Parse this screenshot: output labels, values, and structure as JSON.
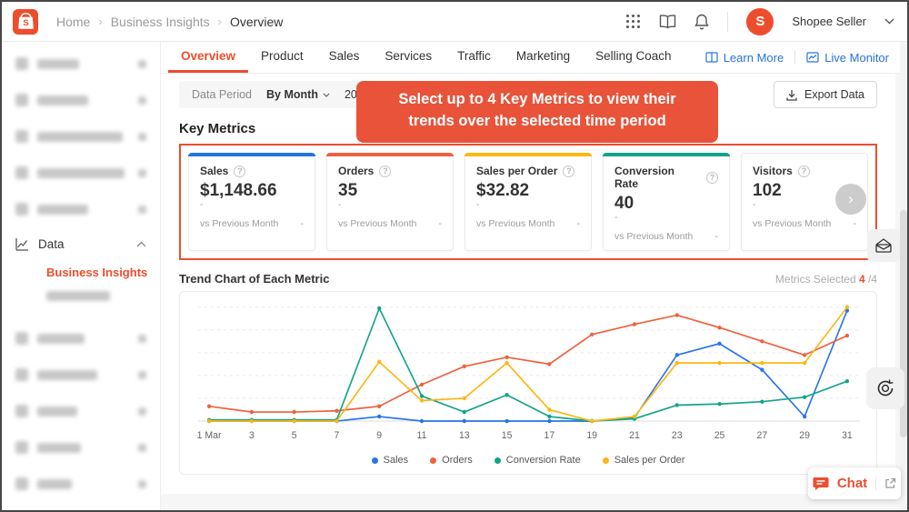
{
  "brand_color": "#ee4d2d",
  "header": {
    "breadcrumb": [
      "Home",
      "Business Insights",
      "Overview"
    ],
    "account_name": "Shopee Seller",
    "icons": [
      "apps-grid-icon",
      "book-icon",
      "bell-icon",
      "chevron-down-icon"
    ]
  },
  "sidebar": {
    "redacted_top_widths": [
      46,
      56,
      94,
      96,
      56
    ],
    "section_label": "Data",
    "active_item": "Business Insights",
    "redacted_sub_width": 70,
    "redacted_bottom_widths": [
      52,
      66,
      44,
      48,
      38
    ]
  },
  "tabs": {
    "items": [
      "Overview",
      "Product",
      "Sales",
      "Services",
      "Traffic",
      "Marketing",
      "Selling Coach"
    ],
    "active": "Overview",
    "links": [
      {
        "label": "Learn More",
        "icon": "open-book-icon"
      },
      {
        "label": "Live Monitor",
        "icon": "monitor-chart-icon"
      }
    ]
  },
  "period": {
    "label": "Data Period",
    "granularity": "By Month",
    "date": "2024.03 (G"
  },
  "export_label": "Export Data",
  "annotation_tooltip": {
    "prefix": "Select up to 4 ",
    "bold": "Key Metrics",
    "suffix": " to view their trends over the selected time period",
    "bg_color": "#e8533a"
  },
  "key_metrics": {
    "title": "Key Metrics",
    "compare_label": "vs Previous Month",
    "cards": [
      {
        "label": "Sales",
        "value": "$1,148.66",
        "sub": "-",
        "compare_value": "-",
        "accent": "#2673dd"
      },
      {
        "label": "Orders",
        "value": "35",
        "sub": "-",
        "compare_value": "-",
        "accent": "#f0613c"
      },
      {
        "label": "Sales per Order",
        "value": "$32.82",
        "sub": "-",
        "compare_value": "-",
        "accent": "#fbb713"
      },
      {
        "label": "Conversion Rate",
        "value": "40",
        "sub": "-",
        "compare_value": "-",
        "accent": "#12a38a"
      },
      {
        "label": "Visitors",
        "value": "102",
        "sub": "-",
        "compare_value": "-",
        "accent": ""
      }
    ]
  },
  "trend": {
    "title": "Trend Chart of Each Metric",
    "metrics_selected_label": "Metrics Selected ",
    "selected": "4",
    "total": " /4"
  },
  "chart_data": {
    "type": "line",
    "x_tick_labels": [
      "1 Mar",
      "3",
      "5",
      "7",
      "9",
      "11",
      "13",
      "15",
      "17",
      "19",
      "21",
      "23",
      "25",
      "27",
      "29",
      "31"
    ],
    "x_days": [
      1,
      3,
      5,
      7,
      9,
      11,
      13,
      15,
      17,
      19,
      21,
      23,
      25,
      27,
      29,
      31
    ],
    "y_unit": "percent-of-plot-height (no y axis shown)",
    "ylim": [
      0,
      100
    ],
    "grid": "horizontal-dashed",
    "legend_position": "bottom",
    "series": [
      {
        "name": "Sales",
        "color": "#2874e8",
        "values": [
          0,
          0,
          0,
          0,
          4,
          0,
          0,
          0,
          0,
          0,
          3,
          58,
          68,
          45,
          4,
          97
        ]
      },
      {
        "name": "Orders",
        "color": "#f0613c",
        "values": [
          13,
          8,
          8,
          9,
          13,
          32,
          48,
          56,
          50,
          76,
          85,
          93,
          82,
          70,
          58,
          75
        ]
      },
      {
        "name": "Conversion Rate",
        "color": "#12a38a",
        "values": [
          1,
          1,
          1,
          1,
          99,
          22,
          8,
          23,
          4,
          0,
          2,
          14,
          15,
          17,
          21,
          35
        ]
      },
      {
        "name": "Sales per Order",
        "color": "#fbb713",
        "values": [
          0,
          0,
          0,
          0,
          52,
          18,
          20,
          51,
          10,
          0,
          4,
          51,
          51,
          51,
          51,
          100
        ]
      }
    ]
  },
  "chat_label": "Chat"
}
